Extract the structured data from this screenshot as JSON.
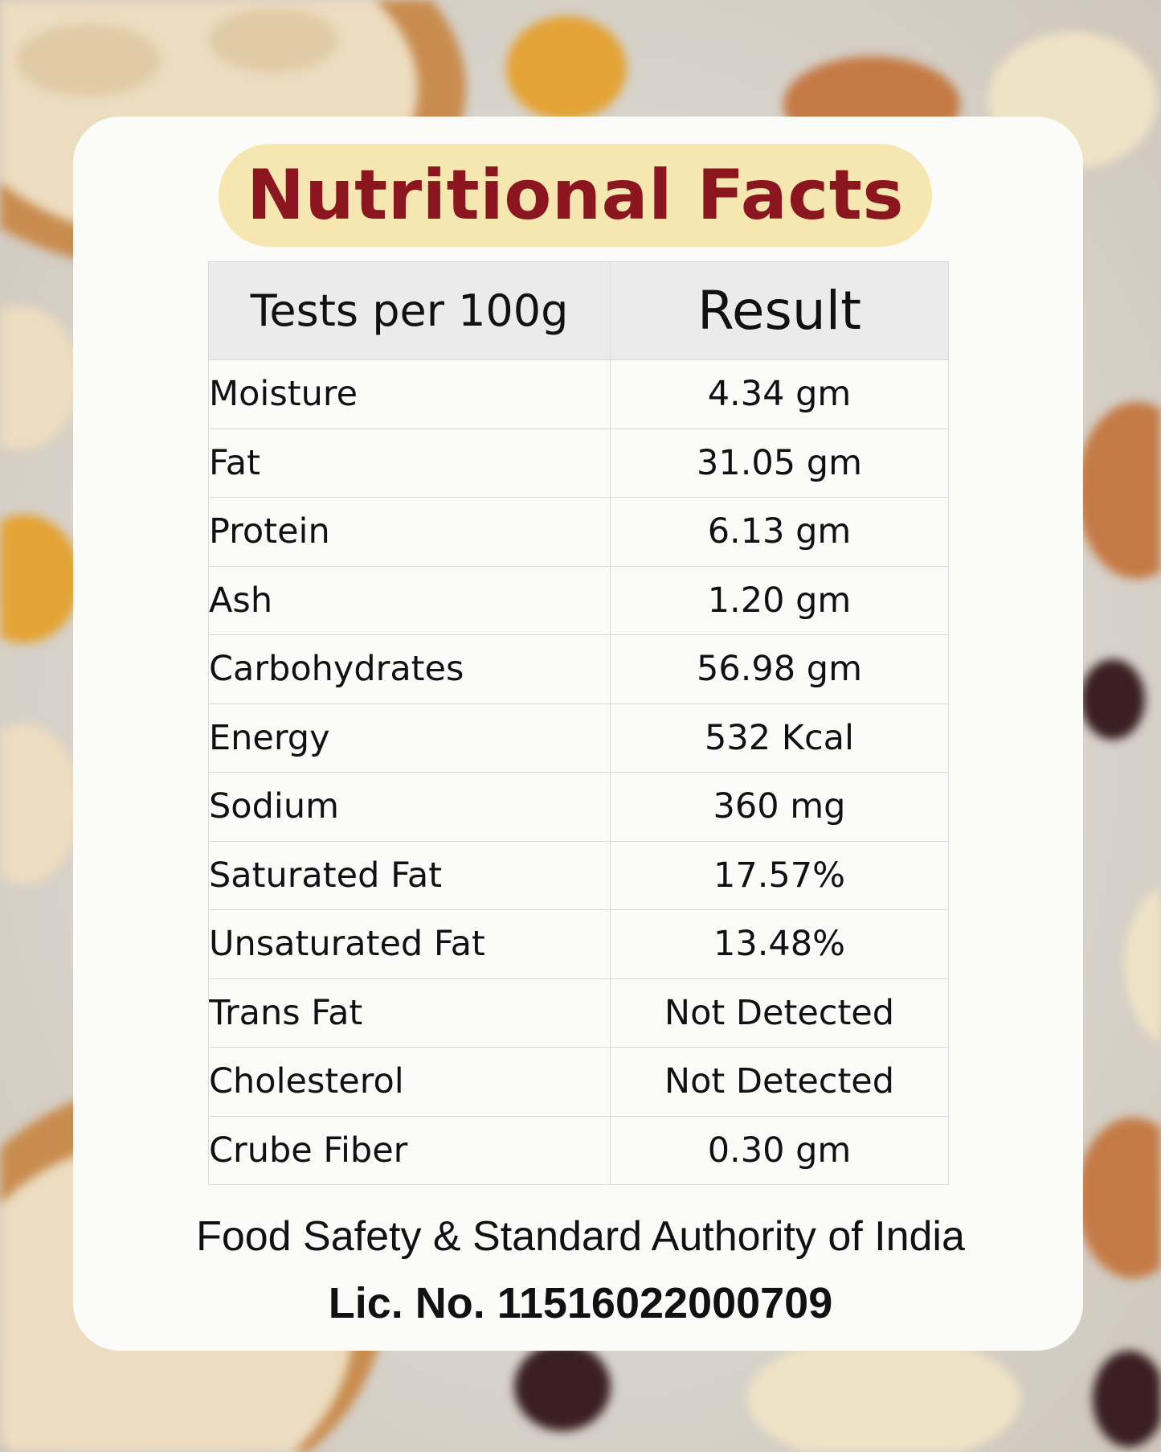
{
  "title": "Nutritional Facts",
  "table": {
    "headers": [
      "Tests per 100g",
      "Result"
    ],
    "rows": [
      {
        "test": "Moisture",
        "result": "4.34 gm"
      },
      {
        "test": "Fat",
        "result": "31.05 gm"
      },
      {
        "test": "Protein",
        "result": "6.13 gm"
      },
      {
        "test": "Ash",
        "result": "1.20 gm"
      },
      {
        "test": "Carbohydrates",
        "result": "56.98 gm"
      },
      {
        "test": "Energy",
        "result": "532 Kcal"
      },
      {
        "test": "Sodium",
        "result": "360 mg"
      },
      {
        "test": "Saturated Fat",
        "result": "17.57%"
      },
      {
        "test": "Unsaturated Fat",
        "result": "13.48%"
      },
      {
        "test": "Trans Fat",
        "result": "Not Detected"
      },
      {
        "test": "Cholesterol",
        "result": "Not Detected"
      },
      {
        "test": "Crube Fiber",
        "result": "0.30 gm"
      }
    ]
  },
  "footer": {
    "authority": "Food Safety & Standard Authority of India",
    "license": "Lic. No. 11516022000709"
  },
  "colors": {
    "title_text": "#8c1620",
    "title_pill": "#f6e6b0",
    "card": "#fbfbfa",
    "header_row": "#ebebeb"
  }
}
